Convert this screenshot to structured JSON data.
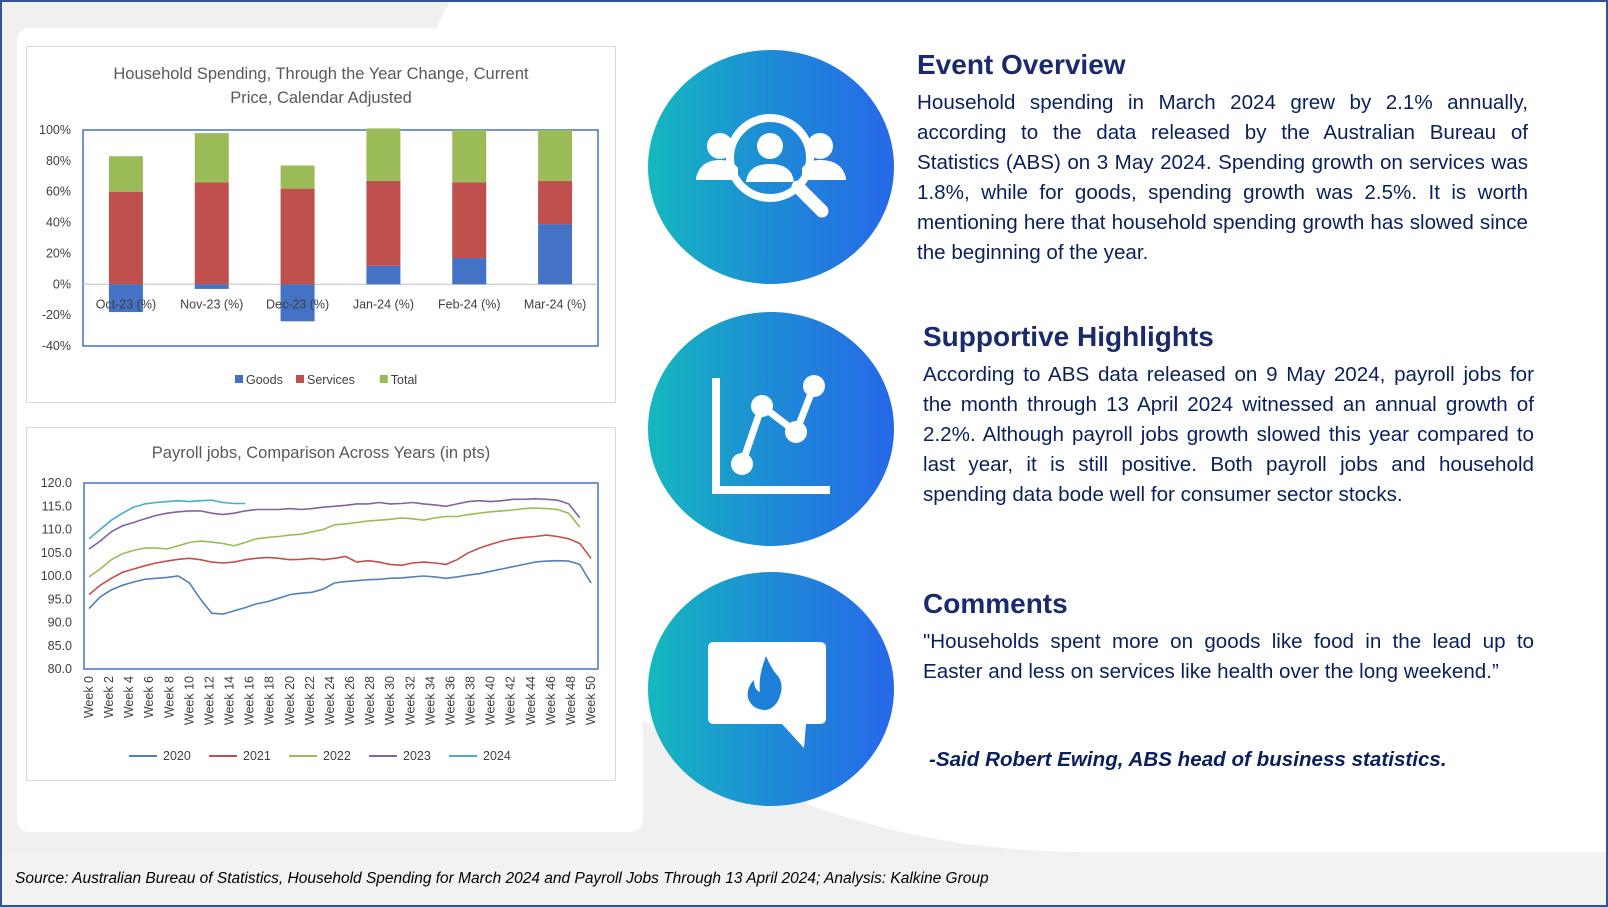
{
  "chart_data": [
    {
      "type": "bar",
      "stacked": true,
      "title": "Household Spending, Through the Year Change, Current Price, Calendar Adjusted",
      "title_lines": [
        "Household Spending, Through the Year Change, Current",
        "Price, Calendar Adjusted"
      ],
      "categories": [
        "Oct-23 (%)",
        "Nov-23 (%)",
        "Dec-23 (%)",
        "Jan-24 (%)",
        "Feb-24 (%)",
        "Mar-24 (%)"
      ],
      "series": [
        {
          "name": "Goods",
          "color": "#4472c4",
          "values": [
            -18,
            -3,
            -24,
            12,
            17,
            39
          ]
        },
        {
          "name": "Services",
          "color": "#c0504d",
          "values": [
            60,
            66,
            62,
            55,
            49,
            28
          ]
        },
        {
          "name": "Total",
          "color": "#9bbb59",
          "values": [
            23,
            32,
            15,
            34,
            34,
            33
          ]
        }
      ],
      "ylim": [
        -40,
        100
      ],
      "yticks": [
        "100%",
        "80%",
        "60%",
        "40%",
        "20%",
        "0%",
        "-20%",
        "-40%"
      ],
      "legend": "bottom"
    },
    {
      "type": "line",
      "title": "Payroll jobs, Comparison Across Years (in pts)",
      "x_labels": [
        "Week 0",
        "Week 2",
        "Week 4",
        "Week 6",
        "Week 8",
        "Week 10",
        "Week 12",
        "Week 14",
        "Week 16",
        "Week 18",
        "Week 20",
        "Week 22",
        "Week 24",
        "Week 26",
        "Week 28",
        "Week 30",
        "Week 32",
        "Week 34",
        "Week 36",
        "Week 38",
        "Week 40",
        "Week 42",
        "Week 44",
        "Week 46",
        "Week 48",
        "Week 50"
      ],
      "ylim": [
        80,
        120
      ],
      "yticks": [
        "120.0",
        "115.0",
        "110.0",
        "105.0",
        "100.0",
        "95.0",
        "90.0",
        "85.0",
        "80.0"
      ],
      "legend": "bottom",
      "series": [
        {
          "name": "2020",
          "color": "#4f81bd",
          "values": [
            93.0,
            95.5,
            97.0,
            98.0,
            98.7,
            99.3,
            99.5,
            99.7,
            100.0,
            98.5,
            95.0,
            92.0,
            91.8,
            92.5,
            93.2,
            94.0,
            94.5,
            95.2,
            96.0,
            96.3,
            96.5,
            97.2,
            98.5,
            98.8,
            99.0,
            99.2,
            99.3,
            99.5,
            99.6,
            99.8,
            100.0,
            99.8,
            99.5,
            99.8,
            100.2,
            100.5,
            101.0,
            101.5,
            102.0,
            102.5,
            103.0,
            103.2,
            103.3,
            103.2,
            102.5,
            98.5
          ]
        },
        {
          "name": "2021",
          "color": "#c0504d",
          "values": [
            96.0,
            98.0,
            99.5,
            100.8,
            101.5,
            102.2,
            102.8,
            103.2,
            103.6,
            103.8,
            103.5,
            103.0,
            102.8,
            103.0,
            103.5,
            103.8,
            104.0,
            103.8,
            103.5,
            103.6,
            103.8,
            103.5,
            103.8,
            104.2,
            103.0,
            103.3,
            103.0,
            102.5,
            102.3,
            102.8,
            103.0,
            102.8,
            102.5,
            103.5,
            105.0,
            106.0,
            106.8,
            107.5,
            108.0,
            108.3,
            108.5,
            108.8,
            108.5,
            108.0,
            107.0,
            103.8
          ]
        },
        {
          "name": "2022",
          "color": "#9bbb59",
          "values": [
            99.8,
            101.5,
            103.5,
            104.8,
            105.5,
            106.0,
            106.0,
            105.8,
            106.5,
            107.2,
            107.5,
            107.3,
            107.0,
            106.5,
            107.2,
            108.0,
            108.3,
            108.5,
            108.8,
            109.0,
            109.5,
            110.0,
            111.0,
            111.2,
            111.5,
            111.8,
            112.0,
            112.2,
            112.5,
            112.3,
            112.0,
            112.5,
            112.8,
            112.8,
            113.2,
            113.5,
            113.8,
            114.0,
            114.2,
            114.5,
            114.6,
            114.5,
            114.3,
            113.5,
            110.5
          ]
        },
        {
          "name": "2023",
          "color": "#8064a2",
          "values": [
            105.8,
            107.5,
            109.5,
            110.8,
            111.5,
            112.3,
            113.0,
            113.5,
            113.8,
            114.0,
            114.0,
            113.5,
            113.2,
            113.5,
            114.0,
            114.3,
            114.3,
            114.3,
            114.5,
            114.3,
            114.5,
            114.8,
            115.0,
            115.2,
            115.5,
            115.5,
            115.8,
            115.5,
            115.6,
            115.8,
            115.5,
            115.3,
            115.0,
            115.5,
            116.0,
            116.2,
            116.0,
            116.2,
            116.5,
            116.5,
            116.6,
            116.5,
            116.3,
            115.5,
            112.5
          ]
        },
        {
          "name": "2024",
          "color": "#4bacc6",
          "values": [
            108.0,
            110.0,
            112.0,
            113.5,
            114.8,
            115.5,
            115.8,
            116.0,
            116.2,
            116.0,
            116.2,
            116.3,
            115.8,
            115.6,
            115.6
          ]
        }
      ]
    }
  ],
  "sections": {
    "overview": {
      "title": "Event Overview",
      "body": "Household spending in March 2024 grew by 2.1% annually, according to the data released by the Australian Bureau of Statistics (ABS) on 3 May 2024. Spending growth on services was 1.8%, while for goods, spending growth was 2.5%. It is worth mentioning here that household spending growth has slowed since the beginning of the year."
    },
    "highlights": {
      "title": "Supportive Highlights",
      "body": "According to ABS data released on 9 May 2024, payroll jobs for the month through 13 April 2024 witnessed an annual growth of 2.2%. Although payroll jobs growth slowed this year compared to last year, it is still positive. Both payroll jobs and household spending data bode well for consumer sector stocks."
    },
    "comments": {
      "title": "Comments",
      "body": "\"Households spent more on goods like food in the lead up to Easter and less on services like health over the long weekend.”",
      "attribution": "-Said Robert Ewing, ABS head of business statistics."
    }
  },
  "icons": [
    "search-people-icon",
    "line-chart-icon",
    "chat-fire-icon"
  ],
  "footer": {
    "source": "Source: Australian Bureau of Statistics, Household Spending for March 2024 and Payroll Jobs Through 13 April 2024; Analysis: Kalkine Group"
  }
}
